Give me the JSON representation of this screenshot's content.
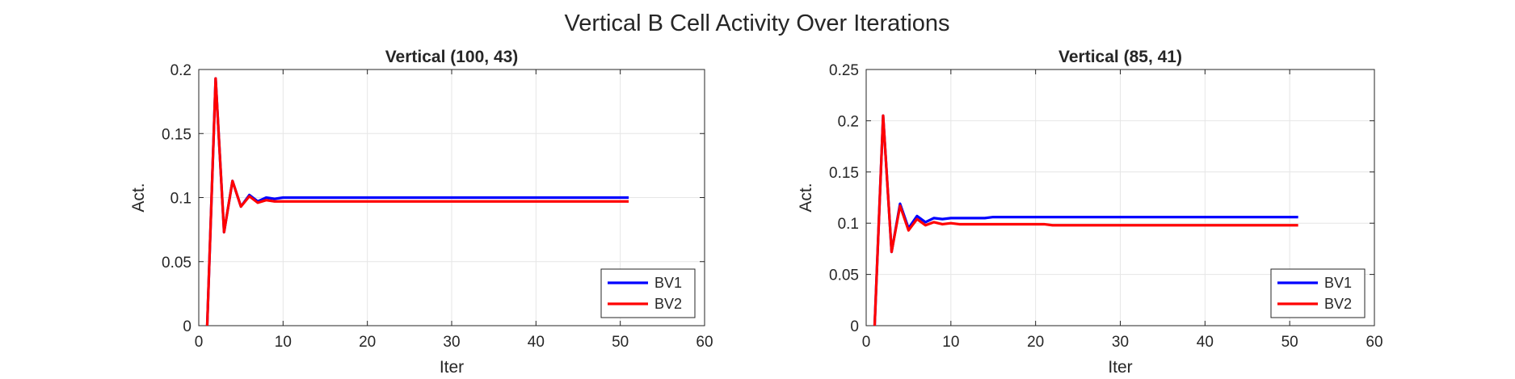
{
  "figure": {
    "suptitle": "Vertical B Cell Activity Over Iterations"
  },
  "chart_data": [
    {
      "type": "line",
      "title": "Vertical (100, 43)",
      "xlabel": "Iter",
      "ylabel": "Act.",
      "xlim": [
        0,
        60
      ],
      "ylim": [
        0,
        0.2
      ],
      "xticks": [
        0,
        10,
        20,
        30,
        40,
        50,
        60
      ],
      "yticks": [
        0,
        0.05,
        0.1,
        0.15,
        0.2
      ],
      "ytick_labels": [
        "0",
        "0.05",
        "0.1",
        "0.15",
        "0.2"
      ],
      "grid": true,
      "legend_position": "bottom-right",
      "x": [
        1,
        2,
        3,
        4,
        5,
        6,
        7,
        8,
        9,
        10,
        11,
        12,
        13,
        14,
        15,
        16,
        17,
        18,
        19,
        20,
        21,
        22,
        23,
        24,
        25,
        26,
        27,
        28,
        29,
        30,
        31,
        32,
        33,
        34,
        35,
        36,
        37,
        38,
        39,
        40,
        41,
        42,
        43,
        44,
        45,
        46,
        47,
        48,
        49,
        50,
        51
      ],
      "series": [
        {
          "name": "BV1",
          "color": "#0000ff",
          "values": [
            0,
            0.193,
            0.073,
            0.113,
            0.093,
            0.102,
            0.097,
            0.1,
            0.099,
            0.1,
            0.1,
            0.1,
            0.1,
            0.1,
            0.1,
            0.1,
            0.1,
            0.1,
            0.1,
            0.1,
            0.1,
            0.1,
            0.1,
            0.1,
            0.1,
            0.1,
            0.1,
            0.1,
            0.1,
            0.1,
            0.1,
            0.1,
            0.1,
            0.1,
            0.1,
            0.1,
            0.1,
            0.1,
            0.1,
            0.1,
            0.1,
            0.1,
            0.1,
            0.1,
            0.1,
            0.1,
            0.1,
            0.1,
            0.1,
            0.1,
            0.1
          ]
        },
        {
          "name": "BV2",
          "color": "#ff0000",
          "values": [
            0,
            0.193,
            0.073,
            0.113,
            0.093,
            0.101,
            0.096,
            0.098,
            0.097,
            0.097,
            0.097,
            0.097,
            0.097,
            0.097,
            0.097,
            0.097,
            0.097,
            0.097,
            0.097,
            0.097,
            0.097,
            0.097,
            0.097,
            0.097,
            0.097,
            0.097,
            0.097,
            0.097,
            0.097,
            0.097,
            0.097,
            0.097,
            0.097,
            0.097,
            0.097,
            0.097,
            0.097,
            0.097,
            0.097,
            0.097,
            0.097,
            0.097,
            0.097,
            0.097,
            0.097,
            0.097,
            0.097,
            0.097,
            0.097,
            0.097,
            0.097
          ]
        }
      ]
    },
    {
      "type": "line",
      "title": "Vertical (85, 41)",
      "xlabel": "Iter",
      "ylabel": "Act.",
      "xlim": [
        0,
        60
      ],
      "ylim": [
        0,
        0.25
      ],
      "xticks": [
        0,
        10,
        20,
        30,
        40,
        50,
        60
      ],
      "yticks": [
        0,
        0.05,
        0.1,
        0.15,
        0.2,
        0.25
      ],
      "ytick_labels": [
        "0",
        "0.05",
        "0.1",
        "0.15",
        "0.2",
        "0.25"
      ],
      "grid": true,
      "legend_position": "bottom-right",
      "x": [
        1,
        2,
        3,
        4,
        5,
        6,
        7,
        8,
        9,
        10,
        11,
        12,
        13,
        14,
        15,
        16,
        17,
        18,
        19,
        20,
        21,
        22,
        23,
        24,
        25,
        26,
        27,
        28,
        29,
        30,
        31,
        32,
        33,
        34,
        35,
        36,
        37,
        38,
        39,
        40,
        41,
        42,
        43,
        44,
        45,
        46,
        47,
        48,
        49,
        50,
        51
      ],
      "series": [
        {
          "name": "BV1",
          "color": "#0000ff",
          "values": [
            0,
            0.205,
            0.072,
            0.119,
            0.095,
            0.107,
            0.101,
            0.105,
            0.104,
            0.105,
            0.105,
            0.105,
            0.105,
            0.105,
            0.106,
            0.106,
            0.106,
            0.106,
            0.106,
            0.106,
            0.106,
            0.106,
            0.106,
            0.106,
            0.106,
            0.106,
            0.106,
            0.106,
            0.106,
            0.106,
            0.106,
            0.106,
            0.106,
            0.106,
            0.106,
            0.106,
            0.106,
            0.106,
            0.106,
            0.106,
            0.106,
            0.106,
            0.106,
            0.106,
            0.106,
            0.106,
            0.106,
            0.106,
            0.106,
            0.106,
            0.106
          ]
        },
        {
          "name": "BV2",
          "color": "#ff0000",
          "values": [
            0,
            0.205,
            0.072,
            0.117,
            0.093,
            0.104,
            0.098,
            0.101,
            0.099,
            0.1,
            0.099,
            0.099,
            0.099,
            0.099,
            0.099,
            0.099,
            0.099,
            0.099,
            0.099,
            0.099,
            0.099,
            0.098,
            0.098,
            0.098,
            0.098,
            0.098,
            0.098,
            0.098,
            0.098,
            0.098,
            0.098,
            0.098,
            0.098,
            0.098,
            0.098,
            0.098,
            0.098,
            0.098,
            0.098,
            0.098,
            0.098,
            0.098,
            0.098,
            0.098,
            0.098,
            0.098,
            0.098,
            0.098,
            0.098,
            0.098,
            0.098
          ]
        }
      ]
    }
  ]
}
